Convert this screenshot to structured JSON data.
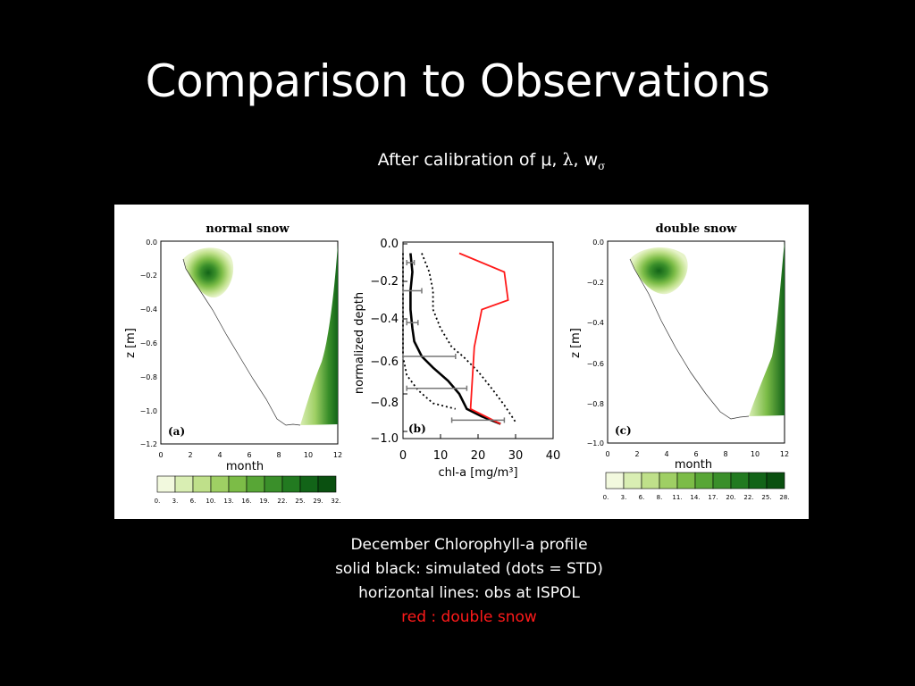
{
  "slide": {
    "title": "Comparison to Observations",
    "subtitle_prefix": "After calibration of μ, ",
    "subtitle_lambda": "λ",
    "subtitle_sep": ", w",
    "subtitle_sigma": "σ",
    "caption_lines": [
      "December Chlorophyll-a profile",
      "solid black: simulated (dots = STD)",
      "horizontal lines: obs at ISPOL"
    ],
    "caption_red": "red : double snow"
  },
  "panels": {
    "a": {
      "title": "normal snow",
      "label": "(a)",
      "ylabel": "z [m]",
      "xlabel": "month",
      "yticks": [
        "0.0",
        "−0.2",
        "−0.4",
        "−0.6",
        "−0.8",
        "−1.0",
        "−1.2"
      ],
      "xticks": [
        "0",
        "2",
        "4",
        "6",
        "8",
        "10",
        "12"
      ],
      "colorbar": [
        "0.",
        "3.",
        "6.",
        "10.",
        "13.",
        "16.",
        "19.",
        "22.",
        "25.",
        "29.",
        "32."
      ]
    },
    "b": {
      "label": "(b)",
      "ylabel": "normalized depth",
      "xlabel": "chl-a [mg/m³]",
      "yticks": [
        "0.0",
        "−0.2",
        "−0.4",
        "−0.6",
        "−0.8",
        "−1.0"
      ],
      "xticks": [
        "0",
        "10",
        "20",
        "30",
        "40"
      ]
    },
    "c": {
      "title": "double snow",
      "label": "(c)",
      "ylabel": "z [m]",
      "xlabel": "month",
      "yticks": [
        "0.0",
        "−0.2",
        "−0.4",
        "−0.6",
        "−0.8",
        "−1.0"
      ],
      "xticks": [
        "0",
        "2",
        "4",
        "6",
        "8",
        "10",
        "12"
      ],
      "colorbar": [
        "0.",
        "3.",
        "6.",
        "8.",
        "11.",
        "14.",
        "17.",
        "20.",
        "22.",
        "25.",
        "28."
      ]
    }
  },
  "colors": {
    "background": "#000000",
    "red": "#ff1a1a",
    "greens": [
      "#f2f9de",
      "#d9ee b3",
      "#bfe08a",
      "#9fcf64",
      "#7cbc47",
      "#58a636",
      "#3a8f2a",
      "#227a20",
      "#126418",
      "#0a5010"
    ]
  },
  "chart_data": {
    "type": "line",
    "xlabel": "chl-a [mg/m³]",
    "ylabel": "normalized depth",
    "xlim": [
      0,
      40
    ],
    "ylim": [
      -1.05,
      0.0
    ],
    "series": [
      {
        "points": [
          [
            2,
            -0.05
          ],
          [
            2.5,
            -0.15
          ],
          [
            2,
            -0.25
          ],
          [
            2,
            -0.35
          ],
          [
            2.5,
            -0.45
          ],
          [
            3,
            -0.52
          ],
          [
            5,
            -0.6
          ],
          [
            8,
            -0.66
          ],
          [
            12,
            -0.73
          ],
          [
            15,
            -0.8
          ],
          [
            17,
            -0.88
          ],
          [
            21,
            -0.92
          ],
          [
            26,
            -0.96
          ]
        ]
      },
      {
        "points": [
          [
            5,
            -0.05
          ],
          [
            7,
            -0.15
          ],
          [
            8,
            -0.25
          ],
          [
            8,
            -0.35
          ],
          [
            10,
            -0.45
          ],
          [
            13,
            -0.55
          ],
          [
            16,
            -0.6
          ],
          [
            20,
            -0.68
          ],
          [
            24,
            -0.78
          ],
          [
            27,
            -0.86
          ],
          [
            30,
            -0.95
          ]
        ]
      },
      {
        "points": [
          [
            0,
            -0.05
          ],
          [
            0,
            -0.2
          ],
          [
            0,
            -0.4
          ],
          [
            0,
            -0.6
          ],
          [
            1,
            -0.7
          ],
          [
            4,
            -0.78
          ],
          [
            8,
            -0.85
          ],
          [
            14,
            -0.88
          ]
        ]
      },
      {
        "points": [
          [
            15,
            -0.05
          ],
          [
            27,
            -0.15
          ],
          [
            28,
            -0.3
          ],
          [
            21,
            -0.35
          ],
          [
            19,
            -0.55
          ],
          [
            18,
            -0.88
          ],
          [
            22,
            -0.92
          ],
          [
            26,
            -0.96
          ]
        ]
      },
      {
        "points": [
          [
            2,
            -0.1
          ],
          [
            2.5,
            -0.25
          ],
          [
            2.5,
            -0.42
          ],
          [
            7,
            -0.6
          ],
          [
            9,
            -0.77
          ],
          [
            20,
            -0.94
          ]
        ],
        "xerr": [
          1,
          2.5,
          1.5,
          7,
          8,
          7
        ]
      }
    ]
  }
}
